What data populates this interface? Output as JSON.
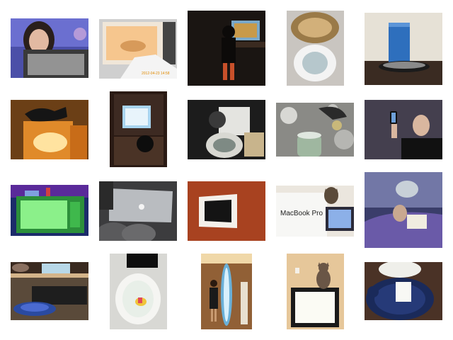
{
  "gallery": {
    "thumbnails": [
      {
        "id": 1,
        "subject": "person-behind-microwave"
      },
      {
        "id": 2,
        "subject": "hand-in-microwave"
      },
      {
        "id": 3,
        "subject": "child-at-computer-desk"
      },
      {
        "id": 4,
        "subject": "toilet-seat-up"
      },
      {
        "id": 5,
        "subject": "blue-glass-and-phone"
      },
      {
        "id": 6,
        "subject": "cat-on-glowing-tv"
      },
      {
        "id": 7,
        "subject": "tv-in-cabinet"
      },
      {
        "id": 8,
        "subject": "toilet-bowl-head"
      },
      {
        "id": 9,
        "subject": "glass-jar-bokeh"
      },
      {
        "id": 10,
        "subject": "man-holding-phone"
      },
      {
        "id": 11,
        "subject": "green-microwave"
      },
      {
        "id": 12,
        "subject": "laptop-on-lap"
      },
      {
        "id": 13,
        "subject": "framed-mirror-on-wall"
      },
      {
        "id": 14,
        "subject": "laptop-box-with-cat"
      },
      {
        "id": 15,
        "subject": "person-reading-in-bed"
      },
      {
        "id": 16,
        "subject": "mouse-by-tv"
      },
      {
        "id": 17,
        "subject": "toilet-top-view"
      },
      {
        "id": 18,
        "subject": "person-with-surfboard"
      },
      {
        "id": 19,
        "subject": "cat-on-tv"
      },
      {
        "id": 20,
        "subject": "toilet-with-note"
      }
    ],
    "photo_text": {
      "microwave_timestamp": "2012-04-23 14:58",
      "laptop_box_brand": "MacBook Pro"
    }
  }
}
